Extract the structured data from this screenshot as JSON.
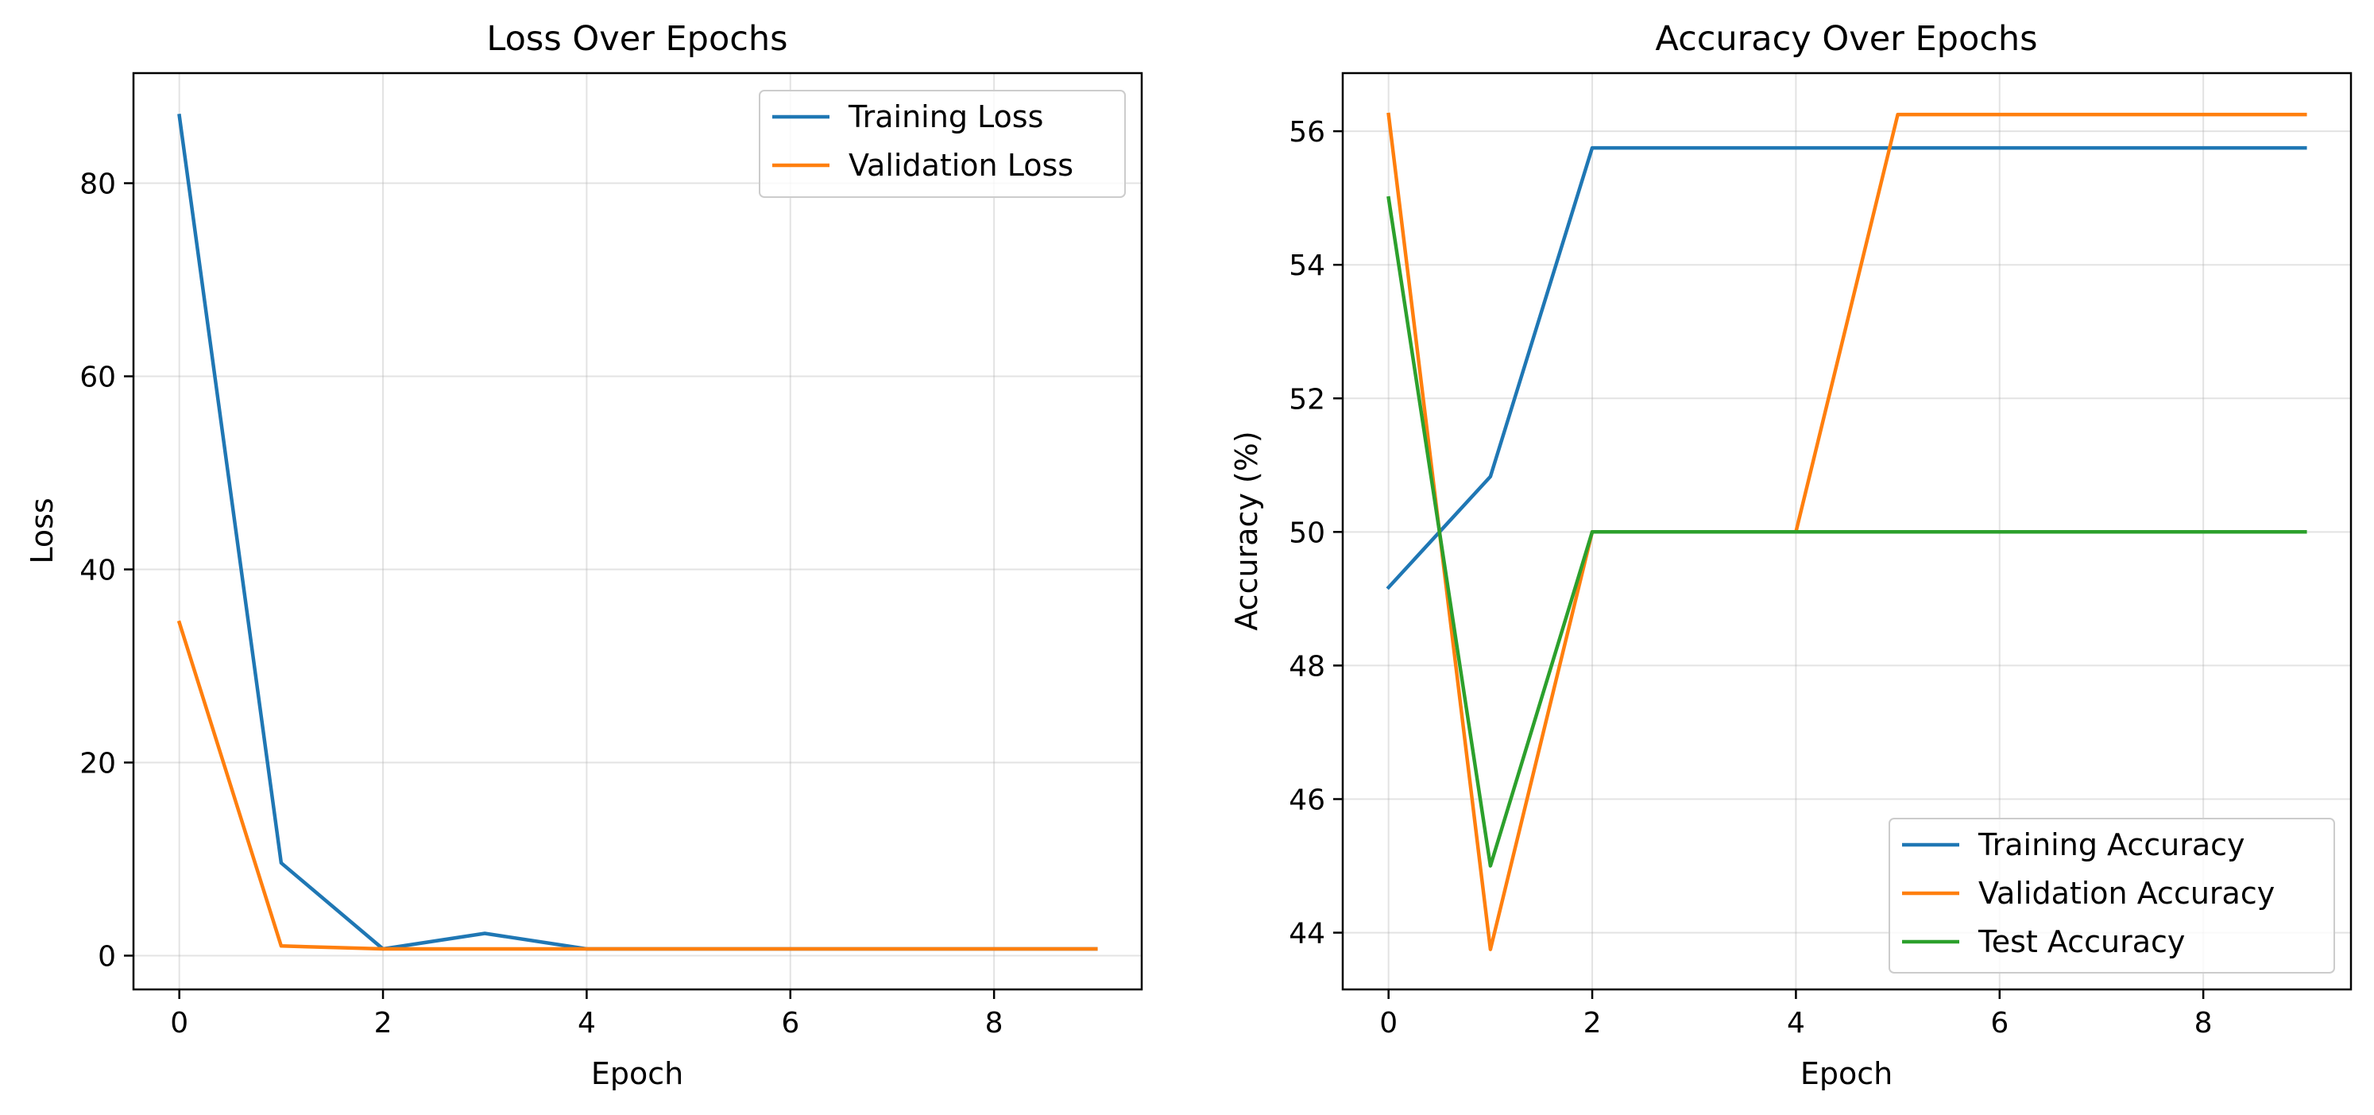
{
  "chart_data": [
    {
      "type": "line",
      "title": "Loss Over Epochs",
      "xlabel": "Epoch",
      "ylabel": "Loss",
      "xlim": [
        -0.45,
        9.45
      ],
      "ylim": [
        -3.5,
        91.4
      ],
      "xticks": [
        0,
        2,
        4,
        6,
        8
      ],
      "yticks": [
        0,
        20,
        40,
        60,
        80
      ],
      "grid": true,
      "legend_position": "top-right",
      "x": [
        0,
        1,
        2,
        3,
        4,
        5,
        6,
        7,
        8,
        9
      ],
      "series": [
        {
          "name": "Training Loss",
          "color": "#1f77b4",
          "values": [
            87.0,
            9.6,
            0.7,
            2.3,
            0.7,
            0.7,
            0.7,
            0.7,
            0.7,
            0.7
          ]
        },
        {
          "name": "Validation Loss",
          "color": "#ff7f0e",
          "values": [
            34.5,
            1.0,
            0.7,
            0.7,
            0.7,
            0.7,
            0.7,
            0.7,
            0.7,
            0.7
          ]
        }
      ]
    },
    {
      "type": "line",
      "title": "Accuracy Over Epochs",
      "xlabel": "Epoch",
      "ylabel": "Accuracy (%)",
      "xlim": [
        -0.45,
        9.45
      ],
      "ylim": [
        43.15,
        56.87
      ],
      "xticks": [
        0,
        2,
        4,
        6,
        8
      ],
      "yticks": [
        44,
        46,
        48,
        50,
        52,
        54,
        56
      ],
      "grid": true,
      "legend_position": "lower-right",
      "x": [
        0,
        1,
        2,
        3,
        4,
        5,
        6,
        7,
        8,
        9
      ],
      "series": [
        {
          "name": "Training Accuracy",
          "color": "#1f77b4",
          "values": [
            49.17,
            50.83,
            55.75,
            55.75,
            55.75,
            55.75,
            55.75,
            55.75,
            55.75,
            55.75
          ]
        },
        {
          "name": "Validation Accuracy",
          "color": "#ff7f0e",
          "values": [
            56.25,
            43.75,
            50.0,
            50.0,
            50.0,
            56.25,
            56.25,
            56.25,
            56.25,
            56.25
          ]
        },
        {
          "name": "Test Accuracy",
          "color": "#2ca02c",
          "values": [
            55.0,
            45.0,
            50.0,
            50.0,
            50.0,
            50.0,
            50.0,
            50.0,
            50.0,
            50.0
          ]
        }
      ]
    }
  ]
}
